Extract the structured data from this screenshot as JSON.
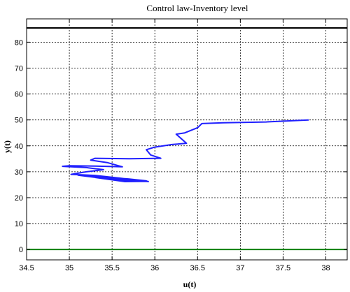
{
  "chart_data": {
    "type": "line",
    "title": "Control law-Inventory level",
    "xlabel": "u(t)",
    "ylabel": "y(t)",
    "xlim": [
      34.5,
      38.25
    ],
    "ylim": [
      -4,
      89
    ],
    "xticks": [
      34.5,
      35,
      35.5,
      36,
      36.5,
      37,
      37.5,
      38
    ],
    "yticks": [
      0,
      10,
      20,
      30,
      40,
      50,
      60,
      70,
      80
    ],
    "grid": true,
    "colors": {
      "trajectory": "#1f1fff",
      "upper_limit": "#000000",
      "lower_limit": "#008000"
    },
    "hlines": [
      {
        "y": 85.5,
        "color": "#000000"
      },
      {
        "y": 0,
        "color": "#008000"
      }
    ],
    "series": [
      {
        "values": [
          [
            37.8,
            50.0
          ],
          [
            37.3,
            49.2
          ],
          [
            36.8,
            48.9
          ],
          [
            36.55,
            48.6
          ],
          [
            36.5,
            47.0
          ],
          [
            36.35,
            45.0
          ],
          [
            36.25,
            44.5
          ],
          [
            36.37,
            41.0
          ],
          [
            36.2,
            40.5
          ],
          [
            36.0,
            39.5
          ],
          [
            35.9,
            38.5
          ],
          [
            35.95,
            36.5
          ],
          [
            36.07,
            35.2
          ],
          [
            35.7,
            35.0
          ],
          [
            35.3,
            35.2
          ],
          [
            35.25,
            34.5
          ],
          [
            35.45,
            33.5
          ],
          [
            35.62,
            31.9
          ],
          [
            35.3,
            32.2
          ],
          [
            35.0,
            32.3
          ],
          [
            34.92,
            32.1
          ],
          [
            35.2,
            31.6
          ],
          [
            35.4,
            30.8
          ],
          [
            35.2,
            30.0
          ],
          [
            35.02,
            29.0
          ],
          [
            35.3,
            28.6
          ],
          [
            35.6,
            27.5
          ],
          [
            35.82,
            26.6
          ],
          [
            35.5,
            27.0
          ],
          [
            35.1,
            28.7
          ],
          [
            35.4,
            28.0
          ],
          [
            35.7,
            27.2
          ],
          [
            35.9,
            26.5
          ],
          [
            35.6,
            26.6
          ],
          [
            35.2,
            28.3
          ],
          [
            35.5,
            27.5
          ],
          [
            35.75,
            26.8
          ],
          [
            35.92,
            26.3
          ],
          [
            35.65,
            26.2
          ],
          [
            35.3,
            27.8
          ],
          [
            35.55,
            27.2
          ],
          [
            35.8,
            26.5
          ],
          [
            35.93,
            26.2
          ]
        ]
      }
    ]
  }
}
